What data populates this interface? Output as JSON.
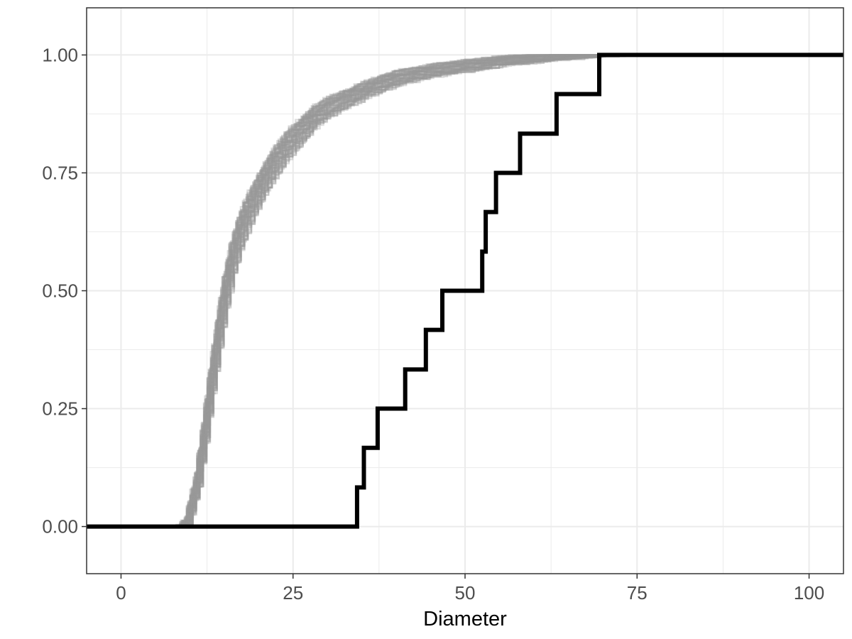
{
  "chart_data": {
    "type": "line",
    "title": "",
    "xlabel": "Diameter",
    "ylabel": "",
    "xlim": [
      -5,
      105
    ],
    "ylim": [
      -0.1,
      1.1
    ],
    "x_ticks": [
      0,
      25,
      50,
      75,
      100
    ],
    "x_tick_labels": [
      "0",
      "25",
      "50",
      "75",
      "100"
    ],
    "y_ticks": [
      0,
      0.25,
      0.5,
      0.75,
      1
    ],
    "y_tick_labels": [
      "0.00",
      "0.25",
      "0.50",
      "0.75",
      "1.00"
    ],
    "grid": true,
    "legend": "none",
    "colors": {
      "observed": "#000000",
      "simulated": "#999999",
      "grid": "#ebebeb",
      "panel_border": "#333333",
      "tick_text": "#4d4d4d"
    },
    "series": [
      {
        "role": "observed",
        "style": "step",
        "x": [
          -5,
          34.3,
          35.3,
          37.3,
          41.3,
          44.3,
          46.7,
          52.5,
          53.0,
          54.5,
          58.0,
          63.3,
          69.5,
          105
        ],
        "y": [
          0,
          0.083,
          0.167,
          0.25,
          0.333,
          0.417,
          0.5,
          0.583,
          0.667,
          0.75,
          0.833,
          0.917,
          1.0,
          1.0
        ]
      }
    ],
    "simulated_envelope": {
      "count": 60,
      "x": [
        -5,
        8.5,
        9.5,
        11,
        12,
        13,
        14,
        15,
        16,
        17,
        18,
        20,
        22,
        24,
        26,
        28,
        30,
        33,
        36,
        40,
        45,
        50,
        55,
        60,
        65,
        70,
        75,
        92
      ],
      "y_mean": [
        0,
        0,
        0.01,
        0.1,
        0.2,
        0.31,
        0.41,
        0.5,
        0.57,
        0.62,
        0.66,
        0.72,
        0.77,
        0.81,
        0.84,
        0.87,
        0.89,
        0.91,
        0.93,
        0.95,
        0.965,
        0.975,
        0.985,
        0.99,
        0.995,
        0.998,
        1.0,
        1.0
      ],
      "spread": [
        0,
        0,
        0.01,
        0.015,
        0.02,
        0.025,
        0.03,
        0.035,
        0.035,
        0.035,
        0.035,
        0.03,
        0.03,
        0.028,
        0.025,
        0.022,
        0.02,
        0.018,
        0.016,
        0.015,
        0.013,
        0.012,
        0.01,
        0.008,
        0.006,
        0.004,
        0.0,
        0.0
      ],
      "x_end_range": [
        68,
        92
      ]
    }
  }
}
